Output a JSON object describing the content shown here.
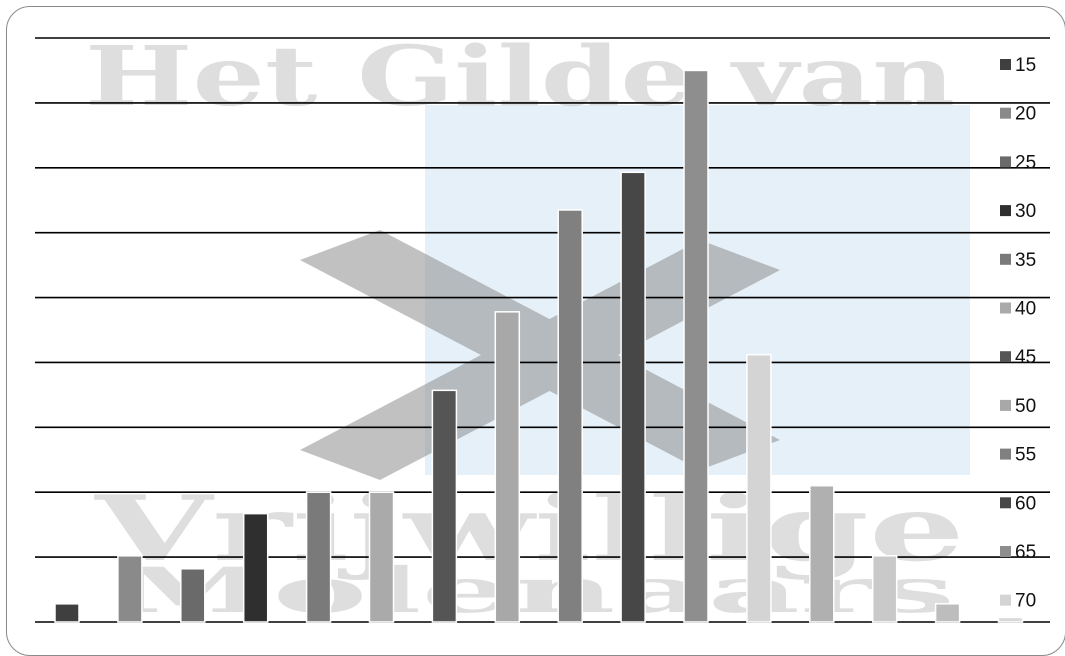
{
  "watermark": {
    "line1": "Het Gilde van",
    "line2": "Vrijwillige",
    "line3": "Molenaars"
  },
  "colors": {
    "gridline": "#000000",
    "watermark_panel": "#cfe3f3",
    "watermark_logo": "#8f8f8f"
  },
  "chart_data": {
    "type": "bar",
    "title": "",
    "xlabel": "",
    "ylabel": "",
    "ylim": [
      0,
      9
    ],
    "grid": true,
    "legend_position": "right",
    "series": [
      {
        "name": "15",
        "value": 0.28,
        "color": "#3f3f3f"
      },
      {
        "name": "20",
        "value": 1.02,
        "color": "#8a8a8a"
      },
      {
        "name": "25",
        "value": 0.82,
        "color": "#6a6a6a"
      },
      {
        "name": "30",
        "value": 1.67,
        "color": "#2f2f2f"
      },
      {
        "name": "35",
        "value": 2.0,
        "color": "#7a7a7a"
      },
      {
        "name": "40",
        "value": 2.0,
        "color": "#aaaaaa"
      },
      {
        "name": "45",
        "value": 3.57,
        "color": "#555555"
      },
      {
        "name": "50",
        "value": 4.78,
        "color": "#a8a8a8"
      },
      {
        "name": "55",
        "value": 6.35,
        "color": "#808080"
      },
      {
        "name": "60",
        "value": 6.93,
        "color": "#474747"
      },
      {
        "name": "65",
        "value": 8.5,
        "color": "#8e8e8e"
      },
      {
        "name": "70",
        "value": 4.12,
        "color": "#d4d4d4"
      },
      {
        "name": "",
        "value": 2.1,
        "color": "#b0b0b0"
      },
      {
        "name": "",
        "value": 1.02,
        "color": "#c9c9c9"
      },
      {
        "name": "",
        "value": 0.28,
        "color": "#bdbdbd"
      },
      {
        "name": "",
        "value": 0.07,
        "color": "#d8d8d8"
      }
    ]
  }
}
